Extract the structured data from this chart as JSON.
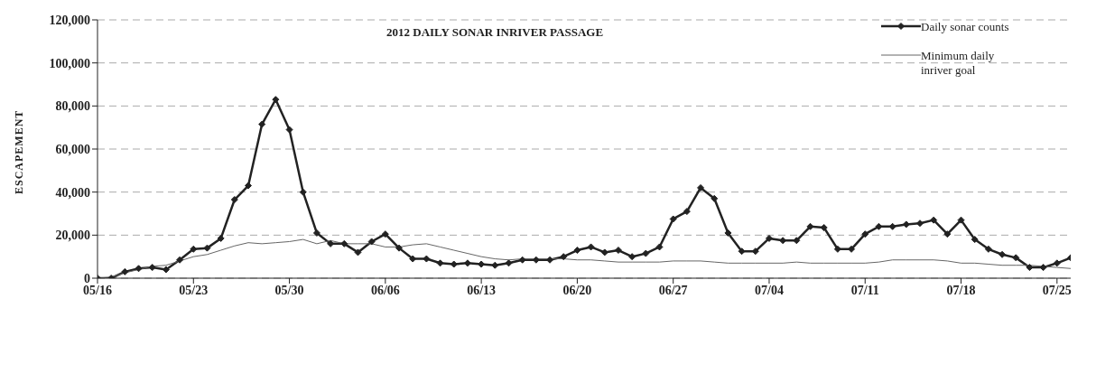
{
  "chart_data": {
    "type": "line",
    "title": "2012 DAILY SONAR INRIVER PASSAGE",
    "ylabel": "ESCAPEMENT",
    "x": [
      "--05-16",
      "--05-17",
      "--05-18",
      "--05-19",
      "--05-20",
      "--05-21",
      "--05-22",
      "--05-23",
      "--05-24",
      "--05-25",
      "--05-26",
      "--05-27",
      "--05-28",
      "--05-29",
      "--05-30",
      "--05-31",
      "--06-01",
      "--06-02",
      "--06-03",
      "--06-04",
      "--06-05",
      "--06-06",
      "--06-07",
      "--06-08",
      "--06-09",
      "--06-10",
      "--06-11",
      "--06-12",
      "--06-13",
      "--06-14",
      "--06-15",
      "--06-16",
      "--06-17",
      "--06-18",
      "--06-19",
      "--06-20",
      "--06-21",
      "--06-22",
      "--06-23",
      "--06-24",
      "--06-25",
      "--06-26",
      "--06-27",
      "--06-28",
      "--06-29",
      "--06-30",
      "--07-01",
      "--07-02",
      "--07-03",
      "--07-04",
      "--07-05",
      "--07-06",
      "--07-07",
      "--07-08",
      "--07-09",
      "--07-10",
      "--07-11",
      "--07-12",
      "--07-13",
      "--07-14",
      "--07-15",
      "--07-16",
      "--07-17",
      "--07-18",
      "--07-19",
      "--07-20",
      "--07-21",
      "--07-22",
      "--07-23",
      "--07-24",
      "--07-25",
      "--07-26"
    ],
    "series": [
      {
        "name": "Daily sonar counts",
        "color": "#222222",
        "marker": "diamond",
        "values": [
          0,
          0,
          3000,
          4500,
          5000,
          4000,
          8500,
          13500,
          14000,
          18500,
          36500,
          43000,
          71500,
          83000,
          69000,
          40000,
          21000,
          16000,
          16000,
          12000,
          17000,
          20500,
          14000,
          9000,
          9000,
          7000,
          6500,
          7000,
          6500,
          6000,
          7000,
          8500,
          8500,
          8500,
          10000,
          13000,
          14500,
          12000,
          13000,
          10000,
          11500,
          14500,
          27500,
          31000,
          42000,
          37000,
          21000,
          12500,
          12500,
          18500,
          17500,
          17500,
          24000,
          23500,
          13500,
          13500,
          20500,
          24000,
          24000,
          25000,
          25500,
          27000,
          20500,
          27000,
          18000,
          13500,
          11000,
          9500,
          5000,
          5000,
          7000,
          9500
        ]
      },
      {
        "name": "Minimum daily inriver goal",
        "color": "#666666",
        "marker": "none",
        "values": [
          0,
          500,
          2500,
          4000,
          5500,
          6000,
          8000,
          10000,
          11000,
          13000,
          15000,
          16500,
          16000,
          16500,
          17000,
          18000,
          16000,
          17500,
          16000,
          16000,
          16000,
          14500,
          14500,
          15500,
          16000,
          14500,
          13000,
          11500,
          10000,
          9000,
          8500,
          9000,
          9000,
          9000,
          9000,
          8500,
          8500,
          8000,
          7500,
          7500,
          7500,
          7500,
          8000,
          8000,
          8000,
          7500,
          7000,
          7000,
          7000,
          7000,
          7000,
          7500,
          7000,
          7000,
          7000,
          7000,
          7000,
          7500,
          8500,
          8500,
          8500,
          8500,
          8000,
          7000,
          7000,
          6500,
          6000,
          6000,
          6000,
          5500,
          5000,
          4500
        ]
      }
    ],
    "xlim": [
      "--05-16",
      "--07-26"
    ],
    "xticks": [
      {
        "value": "--05-16",
        "label": "05/16"
      },
      {
        "value": "--05-23",
        "label": "05/23"
      },
      {
        "value": "--05-30",
        "label": "05/30"
      },
      {
        "value": "--06-06",
        "label": "06/06"
      },
      {
        "value": "--06-13",
        "label": "06/13"
      },
      {
        "value": "--06-20",
        "label": "06/20"
      },
      {
        "value": "--06-27",
        "label": "06/27"
      },
      {
        "value": "--07-04",
        "label": "07/04"
      },
      {
        "value": "--07-11",
        "label": "07/11"
      },
      {
        "value": "--07-18",
        "label": "07/18"
      },
      {
        "value": "--07-25",
        "label": "07/25"
      }
    ],
    "ylim": [
      0,
      120000
    ],
    "yticks": [
      {
        "value": 0,
        "label": "0"
      },
      {
        "value": 20000,
        "label": "20,000"
      },
      {
        "value": 40000,
        "label": "40,000"
      },
      {
        "value": 60000,
        "label": "60,000"
      },
      {
        "value": 80000,
        "label": "80,000"
      },
      {
        "value": 100000,
        "label": "100,000"
      },
      {
        "value": 120000,
        "label": "120,000"
      }
    ],
    "grid": "y",
    "legend": "top right",
    "line_style": "solid"
  }
}
